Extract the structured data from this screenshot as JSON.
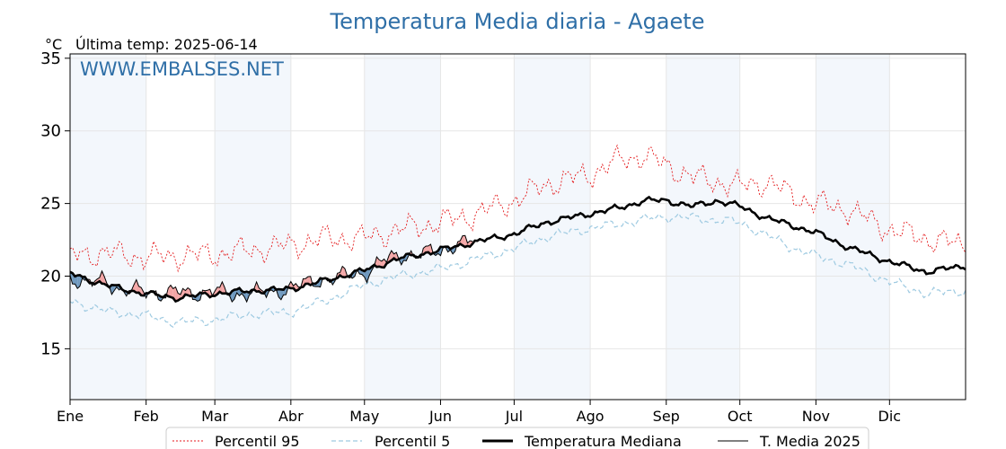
{
  "colors": {
    "title": "#2f6fa7",
    "watermark": "#2f6fa7",
    "band": "#f3f7fc",
    "p95": "#e41a1c",
    "p5": "#9ecae1",
    "median": "#000000",
    "current": "#000000",
    "above_fill": "#f4a6a6",
    "below_fill": "#6f99bf"
  },
  "chart_data": {
    "type": "line",
    "title": "Temperatura Media diaria - Agaete",
    "unit_label": "°C",
    "last_temp_label": "Última temp: 2025-06-14",
    "watermark": "WWW.EMBALSES.NET",
    "ylim": [
      11.5,
      35.3
    ],
    "yticks": [
      15,
      20,
      25,
      30,
      35
    ],
    "xlim": [
      1,
      366
    ],
    "months": [
      "Ene",
      "Feb",
      "Mar",
      "Abr",
      "May",
      "Jun",
      "Jul",
      "Ago",
      "Sep",
      "Oct",
      "Nov",
      "Dic"
    ],
    "month_start_days": [
      1,
      32,
      60,
      91,
      121,
      152,
      182,
      213,
      244,
      274,
      305,
      335
    ],
    "grid": true,
    "legend_position": "bottom-center",
    "series": [
      {
        "name": "Percentil 95",
        "style": "dotted-red",
        "anchors": [
          [
            1,
            21.4
          ],
          [
            15,
            21.6
          ],
          [
            31,
            21.3
          ],
          [
            45,
            21.4
          ],
          [
            60,
            21.5
          ],
          [
            75,
            21.8
          ],
          [
            90,
            22.1
          ],
          [
            105,
            22.6
          ],
          [
            121,
            22.6
          ],
          [
            135,
            23.2
          ],
          [
            152,
            23.7
          ],
          [
            165,
            24.2
          ],
          [
            182,
            25.2
          ],
          [
            195,
            26.3
          ],
          [
            213,
            27.0
          ],
          [
            225,
            28.0
          ],
          [
            235,
            28.3
          ],
          [
            244,
            27.6
          ],
          [
            255,
            26.8
          ],
          [
            274,
            26.2
          ],
          [
            285,
            26.5
          ],
          [
            295,
            25.6
          ],
          [
            305,
            25.0
          ],
          [
            318,
            24.6
          ],
          [
            335,
            23.2
          ],
          [
            350,
            22.6
          ],
          [
            366,
            22.1
          ]
        ],
        "noise": 0.9
      },
      {
        "name": "Percentil 5",
        "style": "dashed-lightblue",
        "anchors": [
          [
            1,
            18.3
          ],
          [
            15,
            17.6
          ],
          [
            31,
            17.3
          ],
          [
            45,
            16.8
          ],
          [
            60,
            17.0
          ],
          [
            75,
            17.4
          ],
          [
            90,
            17.5
          ],
          [
            105,
            18.3
          ],
          [
            121,
            19.4
          ],
          [
            135,
            20.0
          ],
          [
            152,
            20.5
          ],
          [
            165,
            21.1
          ],
          [
            182,
            21.9
          ],
          [
            195,
            22.7
          ],
          [
            213,
            23.3
          ],
          [
            225,
            23.6
          ],
          [
            235,
            23.9
          ],
          [
            244,
            24.1
          ],
          [
            255,
            24.0
          ],
          [
            274,
            23.7
          ],
          [
            285,
            22.8
          ],
          [
            295,
            22.0
          ],
          [
            305,
            21.4
          ],
          [
            318,
            20.8
          ],
          [
            335,
            19.6
          ],
          [
            350,
            18.8
          ],
          [
            366,
            19.0
          ]
        ],
        "noise": 0.35
      },
      {
        "name": "Temperatura Mediana",
        "style": "thick-black",
        "anchors": [
          [
            1,
            20.2
          ],
          [
            15,
            19.4
          ],
          [
            31,
            18.8
          ],
          [
            45,
            18.5
          ],
          [
            60,
            18.8
          ],
          [
            75,
            19.0
          ],
          [
            90,
            19.1
          ],
          [
            105,
            19.7
          ],
          [
            121,
            20.4
          ],
          [
            135,
            21.2
          ],
          [
            152,
            21.8
          ],
          [
            165,
            22.3
          ],
          [
            182,
            22.9
          ],
          [
            195,
            23.7
          ],
          [
            213,
            24.3
          ],
          [
            225,
            24.7
          ],
          [
            235,
            25.2
          ],
          [
            244,
            25.2
          ],
          [
            255,
            24.8
          ],
          [
            265,
            25.2
          ],
          [
            274,
            24.8
          ],
          [
            285,
            24.0
          ],
          [
            295,
            23.5
          ],
          [
            305,
            23.0
          ],
          [
            318,
            22.0
          ],
          [
            335,
            21.0
          ],
          [
            350,
            20.3
          ],
          [
            366,
            20.7
          ]
        ],
        "noise": 0.22
      },
      {
        "name": "T. Media 2025",
        "style": "thin-black",
        "last_day": 165,
        "anchors": [
          [
            1,
            20.0
          ],
          [
            8,
            19.4
          ],
          [
            15,
            19.8
          ],
          [
            22,
            19.0
          ],
          [
            31,
            19.0
          ],
          [
            38,
            18.8
          ],
          [
            45,
            18.9
          ],
          [
            52,
            18.8
          ],
          [
            60,
            19.0
          ],
          [
            68,
            18.7
          ],
          [
            75,
            18.9
          ],
          [
            83,
            18.8
          ],
          [
            90,
            19.2
          ],
          [
            98,
            19.5
          ],
          [
            105,
            19.8
          ],
          [
            112,
            20.0
          ],
          [
            121,
            20.2
          ],
          [
            128,
            21.0
          ],
          [
            135,
            21.4
          ],
          [
            142,
            21.5
          ],
          [
            152,
            21.7
          ],
          [
            158,
            22.2
          ],
          [
            165,
            22.4
          ]
        ],
        "noise": 0.6
      }
    ]
  }
}
